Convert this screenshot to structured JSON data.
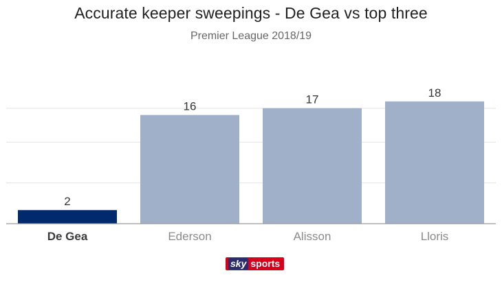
{
  "header": {
    "title": "Accurate keeper sweepings - De Gea vs top three",
    "subtitle": "Premier League 2018/19"
  },
  "branding": {
    "logo_sky": "sky",
    "logo_sports": "sports"
  },
  "colors": {
    "highlight_bar": "#002a6d",
    "other_bar": "#a0b0c9",
    "gridline": "#e3e3e3",
    "axis": "#999999",
    "highlight_label": "#3a3a3a",
    "other_label": "#8a8a8a",
    "value_label": "#333333"
  },
  "chart_data": {
    "type": "bar",
    "title": "Accurate keeper sweepings - De Gea vs top three",
    "subtitle": "Premier League 2018/19",
    "categories": [
      "De Gea",
      "Ederson",
      "Alisson",
      "Lloris"
    ],
    "values": [
      2,
      16,
      17,
      18
    ],
    "highlight": "De Gea",
    "data_labels": true,
    "grid": true,
    "xlabel": "",
    "ylabel": "",
    "ylim": [
      0,
      20
    ]
  }
}
